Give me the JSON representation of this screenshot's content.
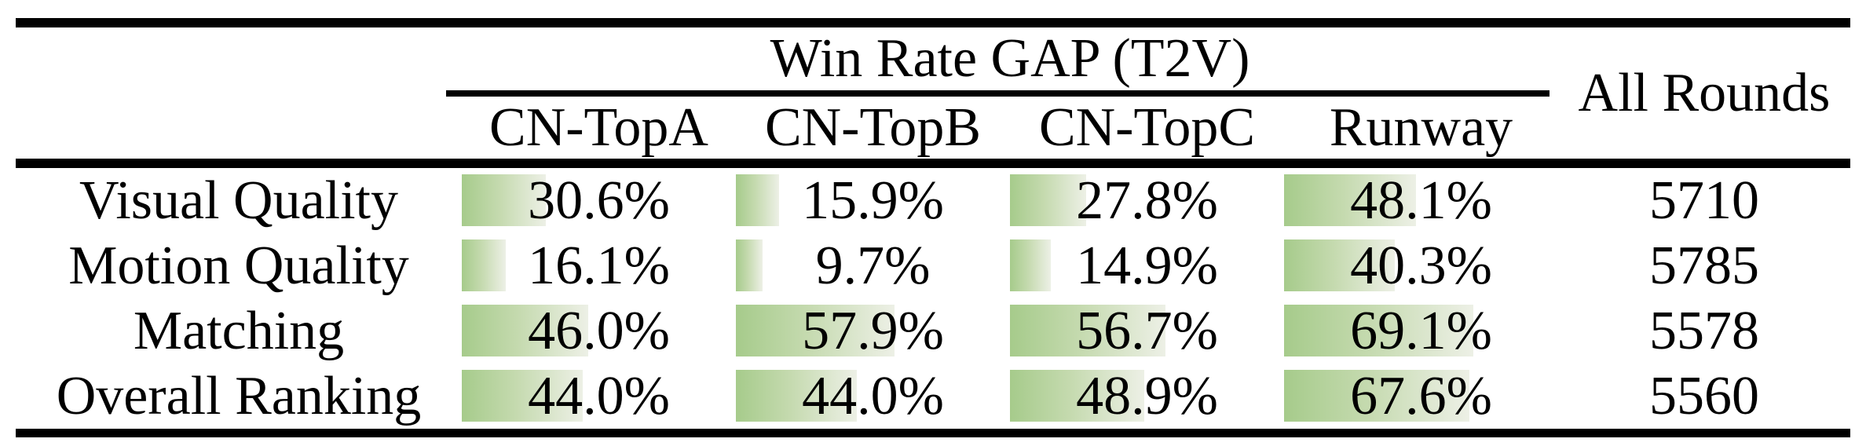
{
  "table": {
    "group_header": "Win Rate GAP (T2V)",
    "all_rounds_header": "All Rounds",
    "model_headers": [
      "CN-TopA",
      "CN-TopB",
      "CN-TopC",
      "Runway"
    ],
    "rows": [
      {
        "label": "Visual Quality",
        "cells": [
          {
            "text": "30.6%",
            "pct": 30.6
          },
          {
            "text": "15.9%",
            "pct": 15.9
          },
          {
            "text": "27.8%",
            "pct": 27.8
          },
          {
            "text": "48.1%",
            "pct": 48.1
          }
        ],
        "all_rounds": "5710"
      },
      {
        "label": "Motion Quality",
        "cells": [
          {
            "text": "16.1%",
            "pct": 16.1
          },
          {
            "text": "9.7%",
            "pct": 9.7
          },
          {
            "text": "14.9%",
            "pct": 14.9
          },
          {
            "text": "40.3%",
            "pct": 40.3
          }
        ],
        "all_rounds": "5785"
      },
      {
        "label": "Matching",
        "cells": [
          {
            "text": "46.0%",
            "pct": 46.0
          },
          {
            "text": "57.9%",
            "pct": 57.9
          },
          {
            "text": "56.7%",
            "pct": 56.7
          },
          {
            "text": "69.1%",
            "pct": 69.1
          }
        ],
        "all_rounds": "5578"
      },
      {
        "label": "Overall Ranking",
        "cells": [
          {
            "text": "44.0%",
            "pct": 44.0
          },
          {
            "text": "44.0%",
            "pct": 44.0
          },
          {
            "text": "48.9%",
            "pct": 48.9
          },
          {
            "text": "67.6%",
            "pct": 67.6
          }
        ],
        "all_rounds": "5560"
      }
    ]
  },
  "colors": {
    "bar_gradient_start": "#a6cb8b",
    "bar_gradient_mid": "#c5daaf",
    "bar_gradient_end": "#edf0e6",
    "rule": "#000000",
    "text": "#000000"
  },
  "chart_data": {
    "type": "table",
    "title": "Win Rate GAP (T2V)",
    "columns": [
      "",
      "CN-TopA",
      "CN-TopB",
      "CN-TopC",
      "Runway",
      "All Rounds"
    ],
    "rows": [
      [
        "Visual Quality",
        "30.6%",
        "15.9%",
        "27.8%",
        "48.1%",
        "5710"
      ],
      [
        "Motion Quality",
        "16.1%",
        "9.7%",
        "14.9%",
        "40.3%",
        "5785"
      ],
      [
        "Matching",
        "46.0%",
        "57.9%",
        "56.7%",
        "69.1%",
        "5578"
      ],
      [
        "Overall Ranking",
        "44.0%",
        "44.0%",
        "48.9%",
        "67.6%",
        "5560"
      ]
    ],
    "series": [
      {
        "name": "CN-TopA",
        "values": [
          30.6,
          16.1,
          46.0,
          44.0
        ]
      },
      {
        "name": "CN-TopB",
        "values": [
          15.9,
          9.7,
          57.9,
          44.0
        ]
      },
      {
        "name": "CN-TopC",
        "values": [
          27.8,
          14.9,
          56.7,
          48.9
        ]
      },
      {
        "name": "Runway",
        "values": [
          48.1,
          40.3,
          69.1,
          67.6
        ]
      },
      {
        "name": "All Rounds",
        "values": [
          5710,
          5785,
          5578,
          5560
        ]
      }
    ],
    "categories": [
      "Visual Quality",
      "Motion Quality",
      "Matching",
      "Overall Ranking"
    ],
    "note": "win-rate cells contain horizontal green gradient bars sized to percentage of cell width, 0-100%"
  }
}
